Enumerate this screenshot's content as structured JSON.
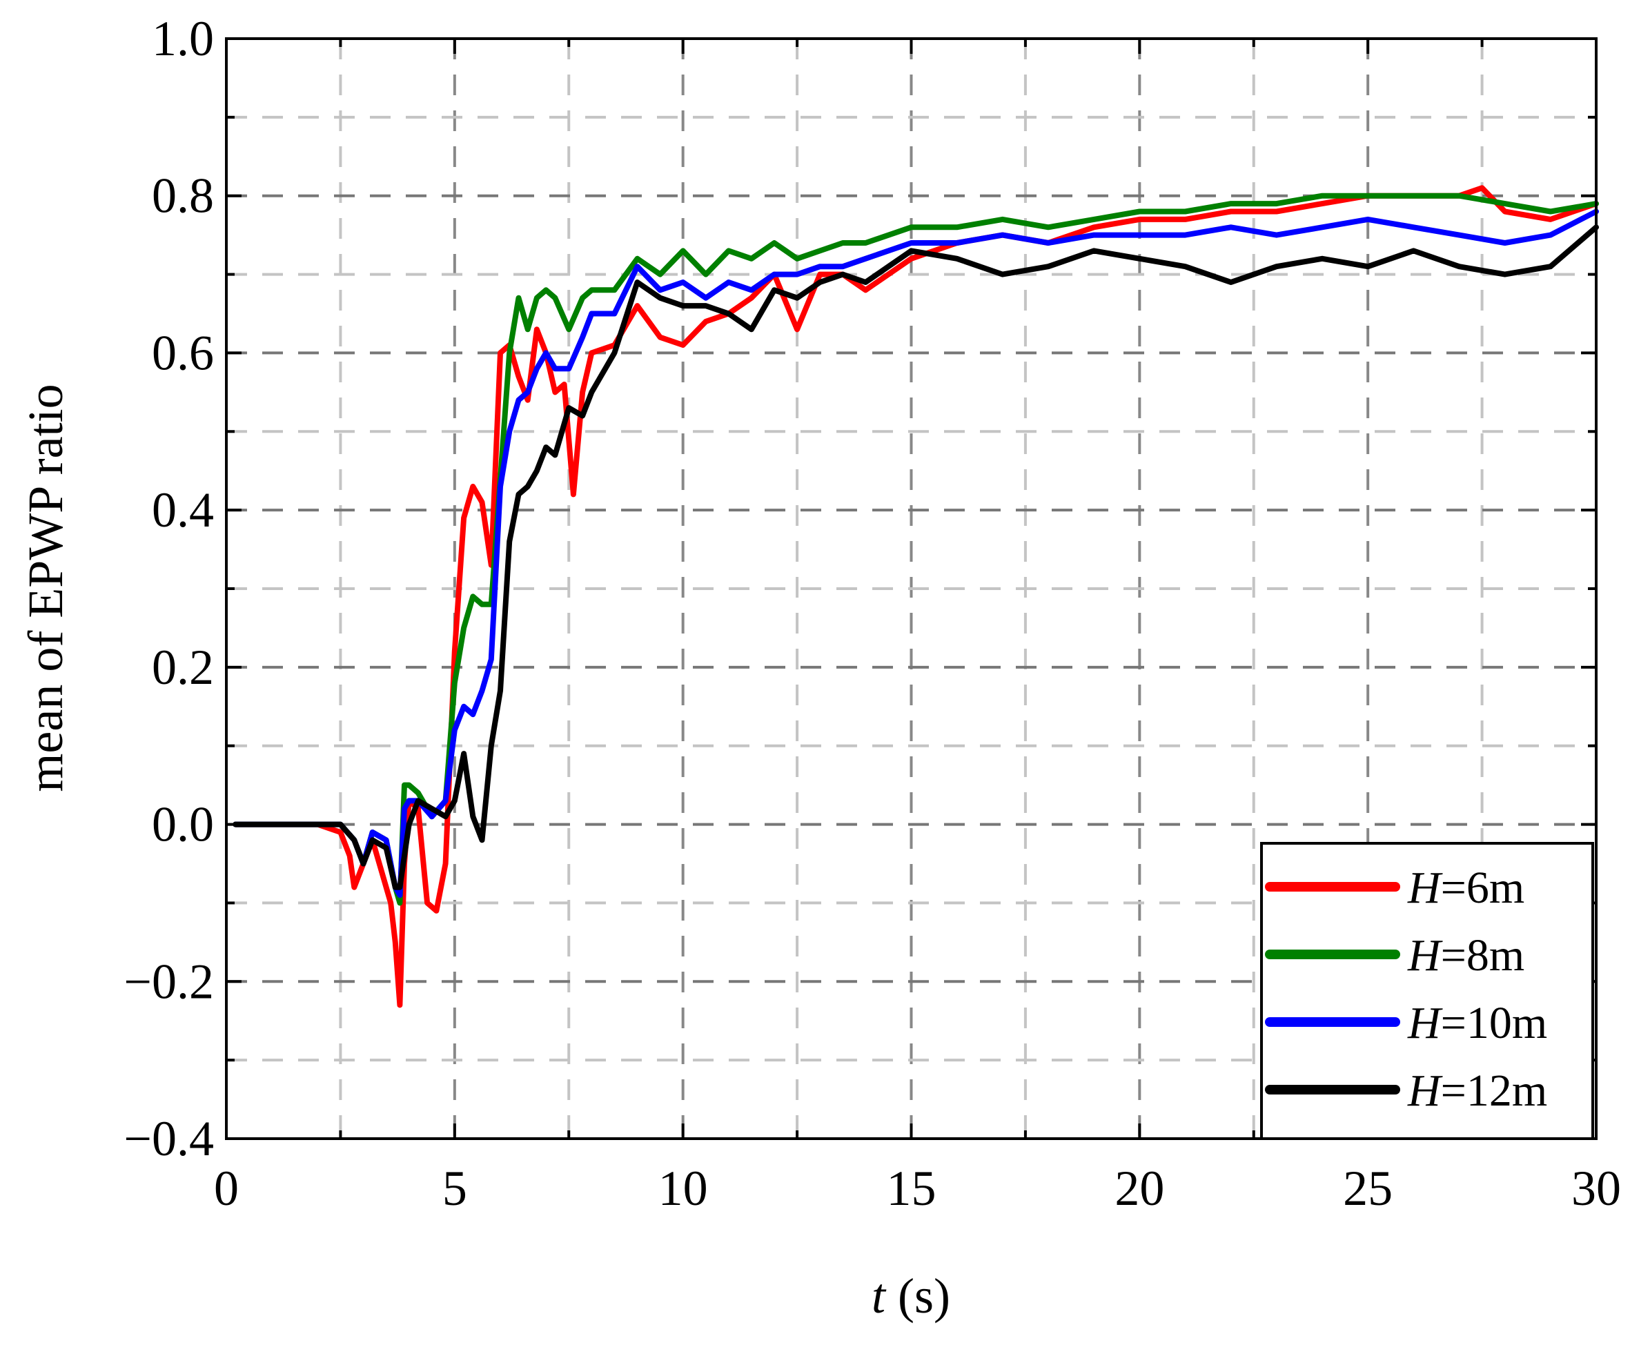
{
  "chart_data": {
    "type": "line",
    "xlabel": {
      "var": "t",
      "unit": " (s)"
    },
    "ylabel": "mean of EPWP ratio",
    "xlim": [
      0,
      30
    ],
    "ylim": [
      -0.4,
      1.0
    ],
    "xticks": [
      "0",
      "5",
      "10",
      "15",
      "20",
      "25",
      "30"
    ],
    "yticks": [
      "1.0",
      "0.8",
      "0.6",
      "0.4",
      "0.2",
      "0.0",
      "−0.2",
      "−0.4"
    ],
    "grid": "dashed",
    "legend_position": "bottom-right",
    "series": [
      {
        "name": "H=6m",
        "var": "H",
        "value": "=6m",
        "color": "#ff0000",
        "x": [
          0.2,
          1,
          2,
          2.5,
          2.7,
          2.8,
          3,
          3.2,
          3.4,
          3.6,
          3.7,
          3.8,
          3.9,
          4,
          4.2,
          4.4,
          4.6,
          4.8,
          5,
          5.2,
          5.4,
          5.6,
          5.8,
          6,
          6.2,
          6.4,
          6.6,
          6.8,
          7,
          7.2,
          7.4,
          7.6,
          7.8,
          8,
          8.5,
          9,
          9.5,
          10,
          10.5,
          11,
          11.5,
          12,
          12.5,
          13,
          13.5,
          14,
          15,
          16,
          17,
          18,
          19,
          20,
          21,
          22,
          23,
          24,
          25,
          26,
          27,
          27.5,
          28,
          29,
          30
        ],
        "y": [
          0,
          0,
          0,
          -0.01,
          -0.04,
          -0.08,
          -0.05,
          -0.02,
          -0.06,
          -0.1,
          -0.15,
          -0.23,
          -0.05,
          0.03,
          0.02,
          -0.1,
          -0.11,
          -0.05,
          0.22,
          0.39,
          0.43,
          0.41,
          0.33,
          0.6,
          0.61,
          0.57,
          0.54,
          0.63,
          0.6,
          0.55,
          0.56,
          0.42,
          0.55,
          0.6,
          0.61,
          0.66,
          0.62,
          0.61,
          0.64,
          0.65,
          0.67,
          0.7,
          0.63,
          0.7,
          0.7,
          0.68,
          0.72,
          0.74,
          0.75,
          0.74,
          0.76,
          0.77,
          0.77,
          0.78,
          0.78,
          0.79,
          0.8,
          0.8,
          0.8,
          0.81,
          0.78,
          0.77,
          0.79
        ]
      },
      {
        "name": "H=8m",
        "var": "H",
        "value": "=8m",
        "color": "#008000",
        "x": [
          0.2,
          1,
          2,
          2.5,
          2.8,
          3,
          3.2,
          3.5,
          3.7,
          3.8,
          3.9,
          4,
          4.2,
          4.5,
          4.8,
          5,
          5.2,
          5.4,
          5.6,
          5.8,
          6,
          6.2,
          6.4,
          6.6,
          6.8,
          7,
          7.2,
          7.5,
          7.8,
          8,
          8.5,
          9,
          9.5,
          10,
          10.5,
          11,
          11.5,
          12,
          12.5,
          13,
          13.5,
          14,
          15,
          16,
          17,
          18,
          19,
          20,
          21,
          22,
          23,
          24,
          25,
          26,
          27,
          28,
          29,
          30
        ],
        "y": [
          0,
          0,
          0,
          0,
          -0.02,
          -0.05,
          -0.01,
          -0.02,
          -0.08,
          -0.1,
          0.05,
          0.05,
          0.04,
          0.01,
          0.03,
          0.18,
          0.25,
          0.29,
          0.28,
          0.28,
          0.44,
          0.6,
          0.67,
          0.63,
          0.67,
          0.68,
          0.67,
          0.63,
          0.67,
          0.68,
          0.68,
          0.72,
          0.7,
          0.73,
          0.7,
          0.73,
          0.72,
          0.74,
          0.72,
          0.73,
          0.74,
          0.74,
          0.76,
          0.76,
          0.77,
          0.76,
          0.77,
          0.78,
          0.78,
          0.79,
          0.79,
          0.8,
          0.8,
          0.8,
          0.8,
          0.79,
          0.78,
          0.79
        ]
      },
      {
        "name": "H=10m",
        "var": "H",
        "value": "=10m",
        "color": "#0000ff",
        "x": [
          0.2,
          1,
          2,
          2.5,
          2.8,
          3,
          3.2,
          3.5,
          3.7,
          3.8,
          3.9,
          4,
          4.2,
          4.5,
          4.8,
          5,
          5.2,
          5.4,
          5.6,
          5.8,
          6,
          6.2,
          6.4,
          6.6,
          6.8,
          7,
          7.2,
          7.5,
          7.8,
          8,
          8.5,
          9,
          9.5,
          10,
          10.5,
          11,
          11.5,
          12,
          12.5,
          13,
          13.5,
          14,
          15,
          16,
          17,
          18,
          19,
          20,
          21,
          22,
          23,
          24,
          25,
          26,
          27,
          28,
          29,
          30
        ],
        "y": [
          0,
          0,
          0,
          0,
          -0.02,
          -0.05,
          -0.01,
          -0.02,
          -0.08,
          -0.09,
          0.02,
          0.03,
          0.03,
          0.01,
          0.03,
          0.12,
          0.15,
          0.14,
          0.17,
          0.21,
          0.43,
          0.5,
          0.54,
          0.55,
          0.58,
          0.6,
          0.58,
          0.58,
          0.62,
          0.65,
          0.65,
          0.71,
          0.68,
          0.69,
          0.67,
          0.69,
          0.68,
          0.7,
          0.7,
          0.71,
          0.71,
          0.72,
          0.74,
          0.74,
          0.75,
          0.74,
          0.75,
          0.75,
          0.75,
          0.76,
          0.75,
          0.76,
          0.77,
          0.76,
          0.75,
          0.74,
          0.75,
          0.78
        ]
      },
      {
        "name": "H=12m",
        "var": "H",
        "value": "=12m",
        "color": "#000000",
        "x": [
          0.2,
          1,
          2,
          2.5,
          2.8,
          3,
          3.2,
          3.5,
          3.7,
          3.8,
          3.9,
          4,
          4.2,
          4.5,
          4.8,
          5,
          5.2,
          5.4,
          5.6,
          5.8,
          6,
          6.2,
          6.4,
          6.6,
          6.8,
          7,
          7.2,
          7.5,
          7.8,
          8,
          8.5,
          9,
          9.5,
          10,
          10.5,
          11,
          11.5,
          12,
          12.5,
          13,
          13.5,
          14,
          15,
          16,
          17,
          18,
          19,
          20,
          21,
          22,
          23,
          24,
          25,
          26,
          27,
          28,
          29,
          30
        ],
        "y": [
          0,
          0,
          0,
          0,
          -0.02,
          -0.05,
          -0.02,
          -0.03,
          -0.08,
          -0.08,
          -0.04,
          0,
          0.03,
          0.02,
          0.01,
          0.03,
          0.09,
          0.01,
          -0.02,
          0.1,
          0.17,
          0.36,
          0.42,
          0.43,
          0.45,
          0.48,
          0.47,
          0.53,
          0.52,
          0.55,
          0.6,
          0.69,
          0.67,
          0.66,
          0.66,
          0.65,
          0.63,
          0.68,
          0.67,
          0.69,
          0.7,
          0.69,
          0.73,
          0.72,
          0.7,
          0.71,
          0.73,
          0.72,
          0.71,
          0.69,
          0.71,
          0.72,
          0.71,
          0.73,
          0.71,
          0.7,
          0.71,
          0.76
        ]
      }
    ]
  }
}
